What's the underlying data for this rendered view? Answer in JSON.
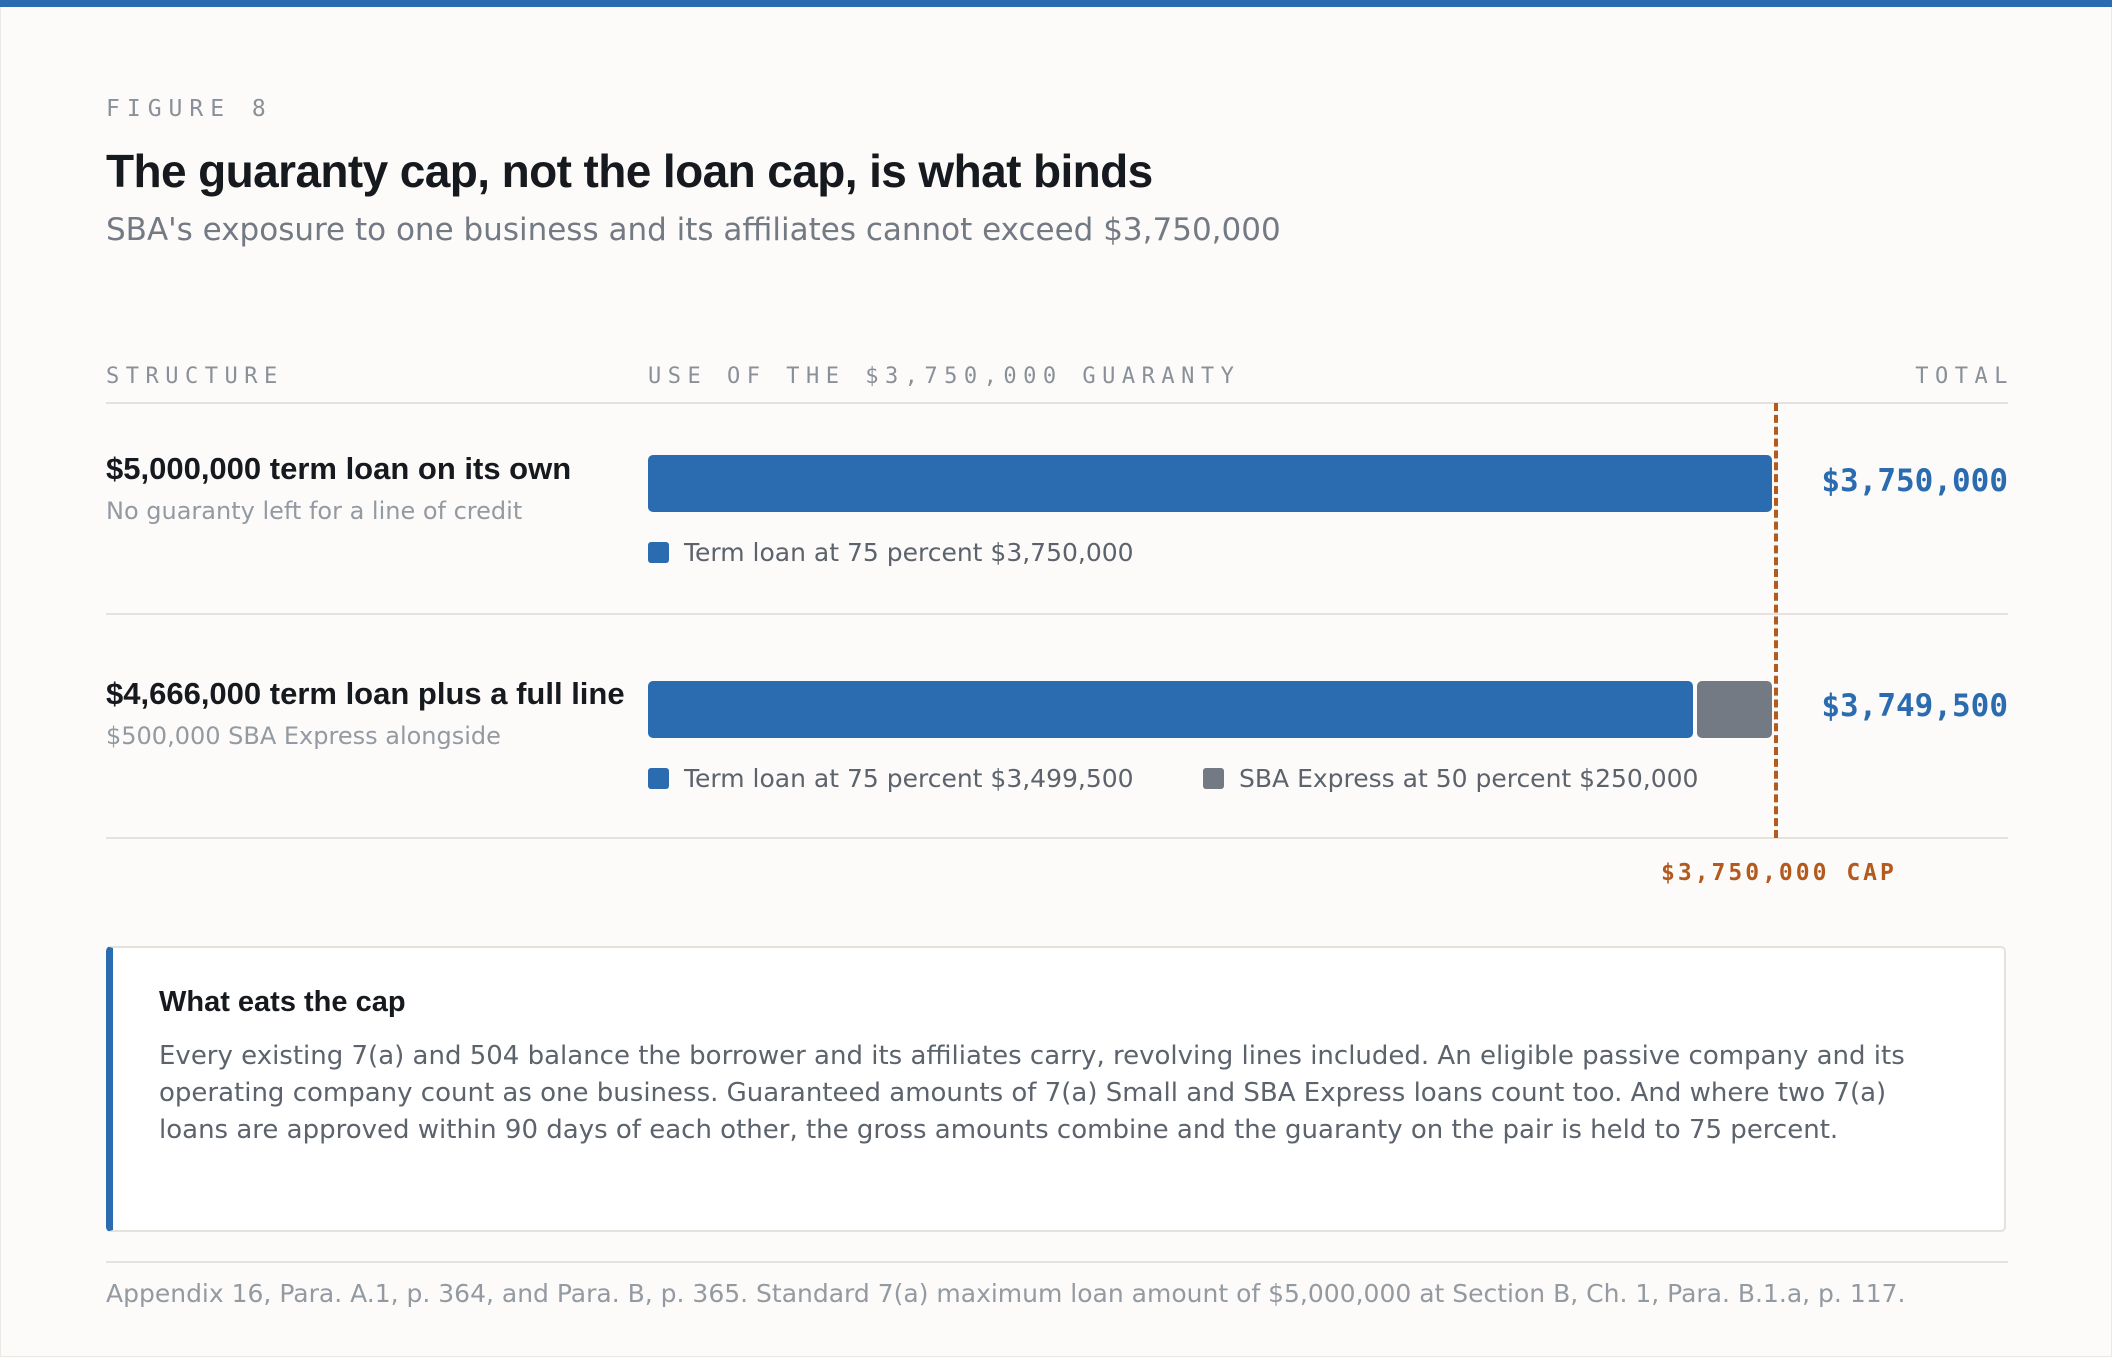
{
  "figure": {
    "eyebrow": "FIGURE 8",
    "title": "The guaranty cap, not the loan cap, is what binds",
    "subtitle": "SBA's exposure to one business and its affiliates cannot exceed $3,750,000"
  },
  "columns": {
    "structure": "STRUCTURE",
    "use": "USE OF THE $3,750,000 GUARANTY",
    "total": "TOTAL"
  },
  "chart_data": {
    "type": "bar",
    "orientation": "horizontal",
    "stacked": true,
    "xlim": [
      0,
      3750000
    ],
    "cap": {
      "value": 3750000,
      "label": "$3,750,000 CAP",
      "color": "#b35a1f"
    },
    "colors": {
      "term": "#2b6cb0",
      "express": "#737a83"
    },
    "rows": [
      {
        "title": "$5,000,000 term loan on its own",
        "subtitle": "No guaranty left for a line of credit",
        "total": "$3,750,000",
        "segments": [
          {
            "key": "term",
            "value": 3750000,
            "label": "Term loan at 75 percent $3,750,000"
          }
        ]
      },
      {
        "title": "$4,666,000 term loan plus a full line",
        "subtitle": "$500,000 SBA Express alongside",
        "total": "$3,749,500",
        "segments": [
          {
            "key": "term",
            "value": 3499500,
            "label": "Term loan at 75 percent $3,499,500"
          },
          {
            "key": "express",
            "value": 250000,
            "label": "SBA Express at 50 percent $250,000"
          }
        ]
      }
    ]
  },
  "note": {
    "title": "What eats the cap",
    "body": "Every existing 7(a) and 504 balance the borrower and its affiliates carry, revolving lines included. An eligible passive company and its operating company count as one business. Guaranteed amounts of 7(a) Small and SBA Express loans count too. And where two 7(a) loans are approved within 90 days of each other, the gross amounts combine and the guaranty on the pair is held to 75 percent."
  },
  "source": "Appendix 16, Para. A.1, p. 364, and Para. B, p. 365. Standard 7(a) maximum loan amount of $5,000,000 at Section B, Ch. 1, Para. B.1.a, p. 117."
}
